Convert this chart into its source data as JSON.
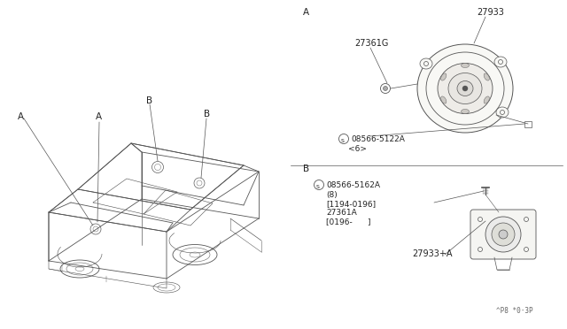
{
  "bg_color": "#ffffff",
  "line_color": "#444444",
  "text_color": "#222222",
  "border_color": "#cccccc",
  "section_A_label": "A",
  "section_B_label": "B",
  "car_label_A": "A",
  "car_label_B_left": "B",
  "car_label_B_right": "B",
  "part_A_27933": "27933",
  "part_A_27361G": "27361G",
  "part_A_screw": "08566-5122A",
  "part_A_screw_sub": "<6>",
  "part_B_line1": "08566-5162A",
  "part_B_line2": "(8)",
  "part_B_line3": "[1194-0196]",
  "part_B_line4": "27361A",
  "part_B_line5": "[0196-      ]",
  "part_B_27933A": "27933+A",
  "footer": "^P8 *0·3P"
}
